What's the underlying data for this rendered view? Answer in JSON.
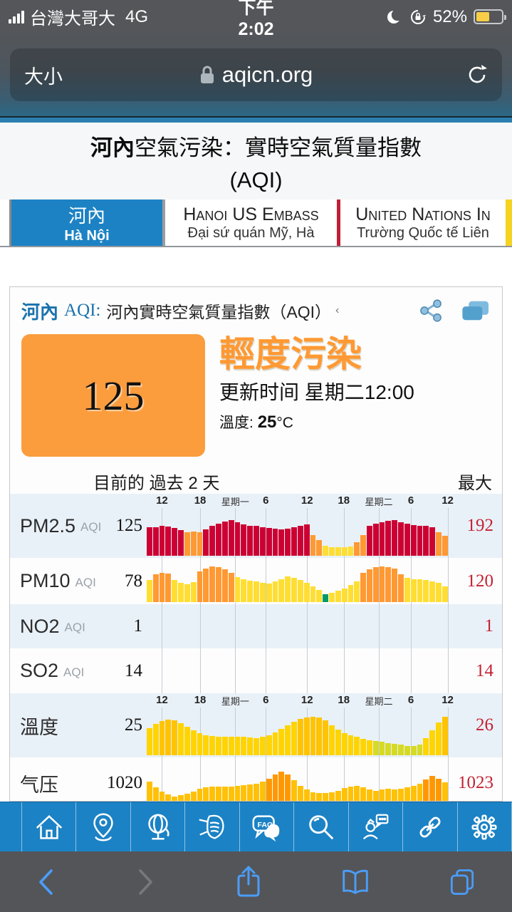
{
  "status_bar": {
    "carrier": "台灣大哥大",
    "network": "4G",
    "time": "下午2:02",
    "battery_pct": "52%"
  },
  "browser": {
    "text_size_label": "大小",
    "url": "aqicn.org"
  },
  "page_title": {
    "bold": "河內",
    "rest": "空氣污染：實時空氣質量指數",
    "line2": "(AQI)"
  },
  "tabs": [
    {
      "title": "河內",
      "subtitle": "Hà Nội",
      "active": true
    },
    {
      "title": "Hanoi US Embass",
      "subtitle": "Đại sứ quán Mỹ, Hà",
      "active": false
    },
    {
      "title": "United Nations In",
      "subtitle": "Trường Quốc tế Liên",
      "active": false
    }
  ],
  "card": {
    "city": "河內",
    "aqi_label": "AQI:",
    "subtitle": "河內實時空氣質量指數（AQI）",
    "anchor_mark": "‹",
    "aqi_value": "125",
    "level": "輕度污染",
    "updated": "更新时间 星期二12:00",
    "temp_label": "溫度:",
    "temp_value": "25",
    "temp_unit": "°C"
  },
  "colors": {
    "accent_blue": "#1b82c5",
    "aqi_orange": "#ff9933",
    "max_red": "#c32232",
    "r": "#cc0033",
    "o": "#ff9933",
    "y": "#ffde33",
    "g": "#009966",
    "t1": "#ffd400",
    "t2": "#ffc300",
    "t3": "#d6da25",
    "p1": "#ffc107",
    "p2": "#ff9800"
  },
  "chart_data": {
    "type": "bar",
    "title": "目前的 過去 2 天",
    "max_label": "最大",
    "x_span": "past 2 days, hourly",
    "ticks": {
      "labels": [
        "12",
        "18",
        "星期一",
        "6",
        "12",
        "18",
        "星期二",
        "6",
        "12"
      ],
      "positions_pct": [
        5,
        17.5,
        29,
        39,
        52.5,
        64.5,
        76,
        86.5,
        98.5
      ],
      "cjk_flags": [
        false,
        false,
        true,
        false,
        false,
        false,
        true,
        false,
        false
      ]
    },
    "rows": [
      {
        "name": "PM2.5",
        "tag": "AQI",
        "current": 125,
        "max": 192,
        "show_ticks": true,
        "bars": [
          [
            62,
            "r"
          ],
          [
            63,
            "r"
          ],
          [
            65,
            "r"
          ],
          [
            64,
            "r"
          ],
          [
            61,
            "r"
          ],
          [
            56,
            "r"
          ],
          [
            52,
            "o"
          ],
          [
            53,
            "o"
          ],
          [
            52,
            "o"
          ],
          [
            58,
            "r"
          ],
          [
            66,
            "r"
          ],
          [
            71,
            "r"
          ],
          [
            75,
            "r"
          ],
          [
            78,
            "r"
          ],
          [
            73,
            "r"
          ],
          [
            69,
            "r"
          ],
          [
            66,
            "r"
          ],
          [
            65,
            "r"
          ],
          [
            63,
            "r"
          ],
          [
            61,
            "r"
          ],
          [
            59,
            "r"
          ],
          [
            58,
            "r"
          ],
          [
            59,
            "r"
          ],
          [
            62,
            "r"
          ],
          [
            66,
            "r"
          ],
          [
            68,
            "r"
          ],
          [
            45,
            "o"
          ],
          [
            34,
            "o"
          ],
          [
            22,
            "y"
          ],
          [
            19,
            "y"
          ],
          [
            18,
            "y"
          ],
          [
            18,
            "y"
          ],
          [
            21,
            "y"
          ],
          [
            30,
            "o"
          ],
          [
            46,
            "o"
          ],
          [
            66,
            "r"
          ],
          [
            71,
            "r"
          ],
          [
            74,
            "r"
          ],
          [
            76,
            "r"
          ],
          [
            78,
            "r"
          ],
          [
            74,
            "r"
          ],
          [
            70,
            "r"
          ],
          [
            67,
            "r"
          ],
          [
            66,
            "r"
          ],
          [
            65,
            "r"
          ],
          [
            63,
            "r"
          ],
          [
            52,
            "o"
          ],
          [
            44,
            "o"
          ]
        ]
      },
      {
        "name": "PM10",
        "tag": "AQI",
        "current": 78,
        "max": 120,
        "show_ticks": false,
        "bars": [
          [
            55,
            "y"
          ],
          [
            70,
            "o"
          ],
          [
            74,
            "o"
          ],
          [
            72,
            "o"
          ],
          [
            55,
            "y"
          ],
          [
            48,
            "y"
          ],
          [
            44,
            "y"
          ],
          [
            50,
            "y"
          ],
          [
            76,
            "o"
          ],
          [
            84,
            "o"
          ],
          [
            90,
            "o"
          ],
          [
            88,
            "o"
          ],
          [
            82,
            "o"
          ],
          [
            74,
            "o"
          ],
          [
            62,
            "y"
          ],
          [
            57,
            "y"
          ],
          [
            54,
            "y"
          ],
          [
            51,
            "y"
          ],
          [
            48,
            "y"
          ],
          [
            46,
            "y"
          ],
          [
            52,
            "y"
          ],
          [
            58,
            "y"
          ],
          [
            64,
            "y"
          ],
          [
            61,
            "y"
          ],
          [
            55,
            "y"
          ],
          [
            48,
            "y"
          ],
          [
            40,
            "y"
          ],
          [
            30,
            "y"
          ],
          [
            20,
            "g"
          ],
          [
            24,
            "y"
          ],
          [
            28,
            "y"
          ],
          [
            34,
            "y"
          ],
          [
            42,
            "y"
          ],
          [
            52,
            "y"
          ],
          [
            74,
            "o"
          ],
          [
            82,
            "o"
          ],
          [
            88,
            "o"
          ],
          [
            90,
            "o"
          ],
          [
            88,
            "o"
          ],
          [
            84,
            "o"
          ],
          [
            70,
            "o"
          ],
          [
            60,
            "y"
          ],
          [
            58,
            "y"
          ],
          [
            57,
            "y"
          ],
          [
            56,
            "y"
          ],
          [
            52,
            "y"
          ],
          [
            48,
            "y"
          ],
          [
            40,
            "y"
          ]
        ]
      },
      {
        "name": "NO2",
        "tag": "AQI",
        "current": 1,
        "max": 1,
        "show_ticks": false,
        "bars": []
      },
      {
        "name": "SO2",
        "tag": "AQI",
        "current": 14,
        "max": 14,
        "show_ticks": false,
        "bars": []
      },
      {
        "name": "溫度",
        "tag": "",
        "current": 25,
        "max": 26,
        "show_ticks": true,
        "bars": [
          [
            60,
            "t1"
          ],
          [
            68,
            "t1"
          ],
          [
            75,
            "t2"
          ],
          [
            78,
            "t2"
          ],
          [
            76,
            "t2"
          ],
          [
            70,
            "t1"
          ],
          [
            62,
            "t1"
          ],
          [
            55,
            "t1"
          ],
          [
            48,
            "t1"
          ],
          [
            44,
            "t1"
          ],
          [
            42,
            "t1"
          ],
          [
            41,
            "t1"
          ],
          [
            40,
            "t1"
          ],
          [
            40,
            "t1"
          ],
          [
            41,
            "t1"
          ],
          [
            40,
            "t1"
          ],
          [
            39,
            "t1"
          ],
          [
            38,
            "t1"
          ],
          [
            40,
            "t1"
          ],
          [
            44,
            "t1"
          ],
          [
            50,
            "t1"
          ],
          [
            58,
            "t1"
          ],
          [
            66,
            "t1"
          ],
          [
            73,
            "t1"
          ],
          [
            80,
            "t2"
          ],
          [
            83,
            "t2"
          ],
          [
            85,
            "t2"
          ],
          [
            83,
            "t2"
          ],
          [
            77,
            "t2"
          ],
          [
            66,
            "t1"
          ],
          [
            56,
            "t1"
          ],
          [
            48,
            "t1"
          ],
          [
            44,
            "t1"
          ],
          [
            40,
            "t1"
          ],
          [
            36,
            "t1"
          ],
          [
            33,
            "t1"
          ],
          [
            31,
            "t3"
          ],
          [
            29,
            "t3"
          ],
          [
            27,
            "t3"
          ],
          [
            25,
            "t3"
          ],
          [
            23,
            "t3"
          ],
          [
            21,
            "t3"
          ],
          [
            20,
            "t3"
          ],
          [
            24,
            "t3"
          ],
          [
            38,
            "t1"
          ],
          [
            55,
            "t1"
          ],
          [
            72,
            "t1"
          ],
          [
            85,
            "t2"
          ]
        ]
      },
      {
        "name": "气压",
        "tag": "",
        "current": 1020,
        "max": 1023,
        "show_ticks": false,
        "bars": [
          [
            62,
            "p1"
          ],
          [
            48,
            "p1"
          ],
          [
            38,
            "p1"
          ],
          [
            30,
            "p1"
          ],
          [
            25,
            "p1"
          ],
          [
            28,
            "p1"
          ],
          [
            33,
            "p1"
          ],
          [
            38,
            "p1"
          ],
          [
            44,
            "p1"
          ],
          [
            48,
            "p1"
          ],
          [
            50,
            "p1"
          ],
          [
            50,
            "p1"
          ],
          [
            50,
            "p1"
          ],
          [
            50,
            "p1"
          ],
          [
            52,
            "p1"
          ],
          [
            54,
            "p1"
          ],
          [
            56,
            "p1"
          ],
          [
            58,
            "p1"
          ],
          [
            62,
            "p1"
          ],
          [
            70,
            "p2"
          ],
          [
            80,
            "p2"
          ],
          [
            88,
            "p2"
          ],
          [
            80,
            "p2"
          ],
          [
            66,
            "p1"
          ],
          [
            52,
            "p1"
          ],
          [
            42,
            "p1"
          ],
          [
            36,
            "p1"
          ],
          [
            34,
            "p1"
          ],
          [
            34,
            "p1"
          ],
          [
            36,
            "p1"
          ],
          [
            40,
            "p1"
          ],
          [
            46,
            "p1"
          ],
          [
            50,
            "p1"
          ],
          [
            52,
            "p1"
          ],
          [
            48,
            "p1"
          ],
          [
            42,
            "p1"
          ],
          [
            40,
            "p1"
          ],
          [
            42,
            "p1"
          ],
          [
            44,
            "p1"
          ],
          [
            42,
            "p1"
          ],
          [
            44,
            "p1"
          ],
          [
            48,
            "p1"
          ],
          [
            52,
            "p1"
          ],
          [
            58,
            "p1"
          ],
          [
            68,
            "p2"
          ],
          [
            76,
            "p2"
          ],
          [
            70,
            "p2"
          ],
          [
            60,
            "p1"
          ]
        ]
      }
    ]
  },
  "app_toolbar": {
    "icons": [
      "home-icon",
      "location-icon",
      "globe-icon",
      "mask-icon",
      "faq-icon",
      "search-icon",
      "contact-icon",
      "link-icon",
      "settings-icon"
    ]
  },
  "safari_toolbar": {
    "icons": [
      "back-icon",
      "forward-icon",
      "share-icon",
      "bookmarks-icon",
      "tabs-icon"
    ]
  }
}
